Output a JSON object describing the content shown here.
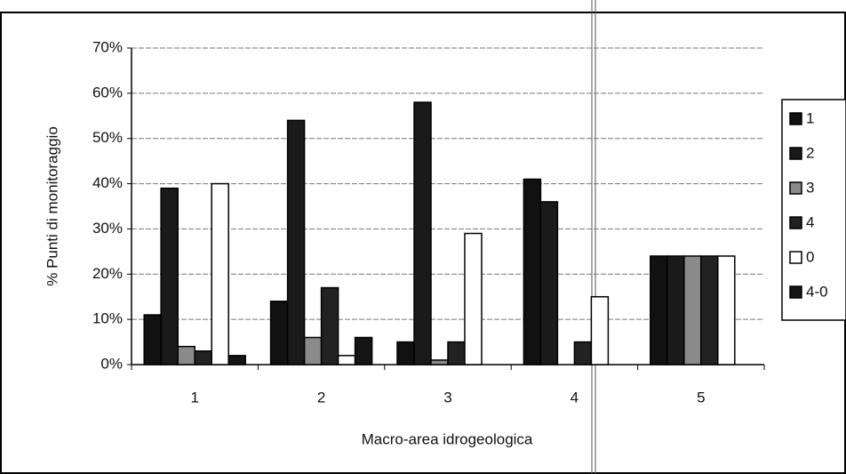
{
  "chart_data": {
    "type": "bar",
    "ylabel": "% Punti di monitoraggio",
    "xlabel": "Macro-area idrogeologica",
    "categories": [
      "1",
      "2",
      "3",
      "4",
      "5"
    ],
    "series": [
      {
        "name": "1",
        "color": "#111111",
        "values": [
          11,
          14,
          5,
          41,
          24
        ]
      },
      {
        "name": "2",
        "color": "#1a1a1a",
        "values": [
          39,
          54,
          58,
          36,
          24
        ]
      },
      {
        "name": "3",
        "color": "#8a8a8a",
        "values": [
          4,
          6,
          1,
          0,
          24
        ]
      },
      {
        "name": "4",
        "color": "#222222",
        "values": [
          3,
          17,
          5,
          5,
          24
        ]
      },
      {
        "name": "0",
        "color": "#ffffff",
        "values": [
          40,
          2,
          29,
          15,
          24
        ]
      },
      {
        "name": "4-0",
        "color": "#151515",
        "values": [
          2,
          6,
          0,
          0,
          0
        ]
      }
    ],
    "ylim": [
      0,
      70
    ],
    "yticks": [
      {
        "value": 0,
        "label": "0%"
      },
      {
        "value": 10,
        "label": "10%"
      },
      {
        "value": 20,
        "label": "20%"
      },
      {
        "value": 30,
        "label": "30%"
      },
      {
        "value": 40,
        "label": "40%"
      },
      {
        "value": 50,
        "label": "50%"
      },
      {
        "value": 60,
        "label": "60%"
      },
      {
        "value": 70,
        "label": "70%"
      }
    ],
    "grid": true,
    "legend": "right"
  }
}
